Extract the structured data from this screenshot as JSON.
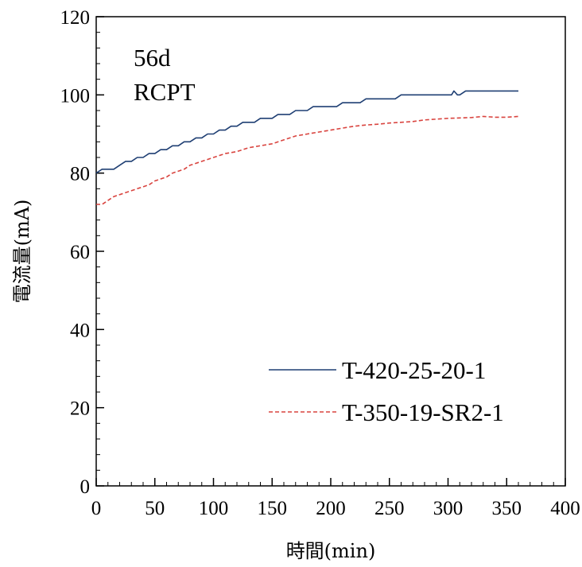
{
  "chart_data": {
    "type": "line",
    "title": "",
    "xlabel": "時間(min)",
    "ylabel": "電流量(mA)",
    "xlim": [
      0,
      400
    ],
    "ylim": [
      0,
      120
    ],
    "x_ticks": [
      "0",
      "50",
      "100",
      "150",
      "200",
      "250",
      "300",
      "350",
      "400"
    ],
    "y_ticks": [
      "0",
      "20",
      "40",
      "60",
      "80",
      "100",
      "120"
    ],
    "grid": false,
    "legend_position": "bottom-right",
    "annotations": [
      "56d",
      "RCPT"
    ],
    "series": [
      {
        "name": "T-420-25-20-1",
        "color": "#1f3f73",
        "style": "solid",
        "x": [
          0,
          5,
          10,
          15,
          20,
          25,
          30,
          35,
          40,
          45,
          50,
          55,
          60,
          65,
          70,
          75,
          80,
          85,
          90,
          95,
          100,
          105,
          110,
          115,
          120,
          125,
          130,
          135,
          140,
          145,
          150,
          155,
          160,
          165,
          170,
          175,
          180,
          185,
          190,
          195,
          200,
          205,
          210,
          215,
          220,
          225,
          230,
          235,
          240,
          245,
          250,
          255,
          260,
          265,
          270,
          275,
          280,
          285,
          290,
          295,
          300,
          303,
          305,
          308,
          310,
          315,
          320,
          330,
          340,
          350,
          360
        ],
        "values": [
          80,
          81,
          81,
          81,
          82,
          83,
          83,
          84,
          84,
          85,
          85,
          86,
          86,
          87,
          87,
          88,
          88,
          89,
          89,
          90,
          90,
          91,
          91,
          92,
          92,
          93,
          93,
          93,
          94,
          94,
          94,
          95,
          95,
          95,
          96,
          96,
          96,
          97,
          97,
          97,
          97,
          97,
          98,
          98,
          98,
          98,
          99,
          99,
          99,
          99,
          99,
          99,
          100,
          100,
          100,
          100,
          100,
          100,
          100,
          100,
          100,
          100,
          101,
          100,
          100,
          101,
          101,
          101,
          101,
          101,
          101
        ]
      },
      {
        "name": "T-350-19-SR2-1",
        "color": "#d9443f",
        "style": "dashed",
        "x": [
          0,
          5,
          10,
          15,
          20,
          25,
          30,
          35,
          40,
          45,
          50,
          55,
          60,
          65,
          70,
          75,
          80,
          85,
          90,
          95,
          100,
          110,
          120,
          130,
          140,
          150,
          160,
          170,
          180,
          190,
          200,
          210,
          220,
          230,
          240,
          250,
          260,
          270,
          280,
          290,
          300,
          310,
          320,
          330,
          340,
          350,
          360
        ],
        "values": [
          72,
          72,
          73,
          74,
          74.5,
          75,
          75.5,
          76,
          76.5,
          77,
          78,
          78.5,
          79,
          80,
          80.5,
          81,
          82,
          82.5,
          83,
          83.5,
          84,
          85,
          85.5,
          86.5,
          87,
          87.5,
          88.5,
          89.5,
          90,
          90.5,
          91,
          91.5,
          92,
          92.3,
          92.5,
          92.8,
          93,
          93.2,
          93.6,
          93.8,
          94,
          94.1,
          94.2,
          94.5,
          94.3,
          94.3,
          94.5
        ]
      }
    ]
  }
}
